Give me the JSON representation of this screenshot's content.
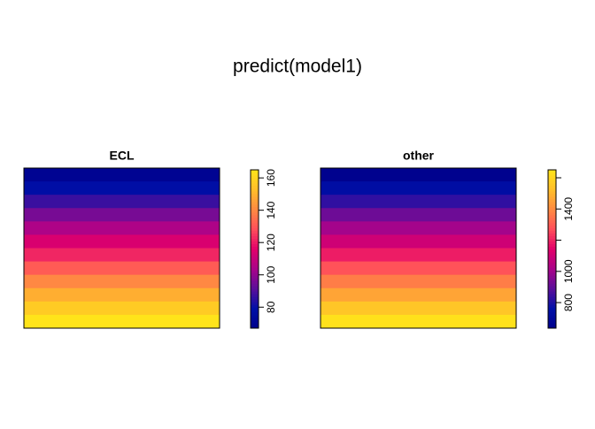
{
  "title": "predict(model1)",
  "chart_data": [
    {
      "type": "raster",
      "title": "ECL",
      "rows": [
        70,
        78,
        87,
        96,
        105,
        114,
        122,
        131,
        140,
        149,
        157,
        165
      ],
      "colors": [
        "#00008B",
        "#0010A8",
        "#5A0F9A",
        "#A8038A",
        "#E2006A",
        "#FF4D5B",
        "#FF8A42",
        "#FFBE2A",
        "#FFE41A"
      ],
      "zlim": [
        67,
        165
      ],
      "zticks": [
        80,
        100,
        120,
        140,
        160
      ]
    },
    {
      "type": "raster",
      "title": "other",
      "rows": [
        650,
        740,
        830,
        920,
        1010,
        1100,
        1190,
        1280,
        1370,
        1460,
        1550,
        1640
      ],
      "colors": [
        "#00008B",
        "#0010A8",
        "#5A0F9A",
        "#A8038A",
        "#E2006A",
        "#FF4D5B",
        "#FF8A42",
        "#FFBE2A",
        "#FFE41A"
      ],
      "zlim": [
        636,
        1651
      ],
      "zticks": [
        800,
        1000,
        {
          "value": 1200,
          "label": null
        },
        1400,
        {
          "value": 1600,
          "label": null
        }
      ]
    }
  ]
}
